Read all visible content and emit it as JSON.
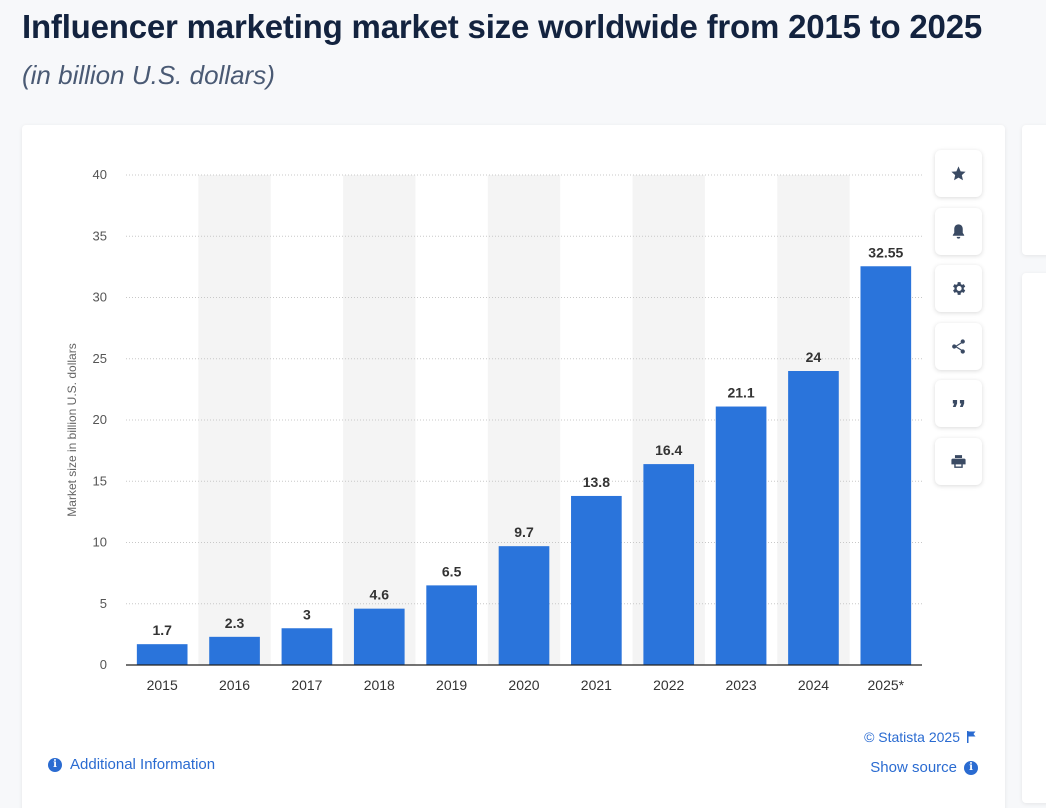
{
  "header": {
    "title": "Influencer marketing market size worldwide from 2015 to 2025",
    "subtitle": "(in billion U.S. dollars)"
  },
  "chart_data": {
    "type": "bar",
    "categories": [
      "2015",
      "2016",
      "2017",
      "2018",
      "2019",
      "2020",
      "2021",
      "2022",
      "2023",
      "2024",
      "2025*"
    ],
    "values": [
      1.7,
      2.3,
      3,
      4.6,
      6.5,
      9.7,
      13.8,
      16.4,
      21.1,
      24,
      32.55
    ],
    "value_labels": [
      "1.7",
      "2.3",
      "3",
      "4.6",
      "6.5",
      "9.7",
      "13.8",
      "16.4",
      "21.1",
      "24",
      "32.55"
    ],
    "ylabel": "Market size in billion U.S. dollars",
    "ylim": [
      0,
      40
    ],
    "yticks": [
      0,
      5,
      10,
      15,
      20,
      25,
      30,
      35,
      40
    ],
    "grid": true,
    "bar_color": "#2a74db",
    "alternating_band_color": "#f4f4f4"
  },
  "toolbar": {
    "buttons": [
      {
        "name": "favorite-button",
        "icon": "star-icon"
      },
      {
        "name": "notification-button",
        "icon": "bell-icon"
      },
      {
        "name": "settings-button",
        "icon": "gear-icon"
      },
      {
        "name": "share-button",
        "icon": "share-icon"
      },
      {
        "name": "cite-button",
        "icon": "quote-icon"
      },
      {
        "name": "print-button",
        "icon": "print-icon"
      }
    ]
  },
  "footer": {
    "additional_info": "Additional Information",
    "copyright": "© Statista 2025",
    "show_source": "Show source"
  },
  "colors": {
    "accent": "#2a6bd1",
    "title": "#13233f"
  }
}
